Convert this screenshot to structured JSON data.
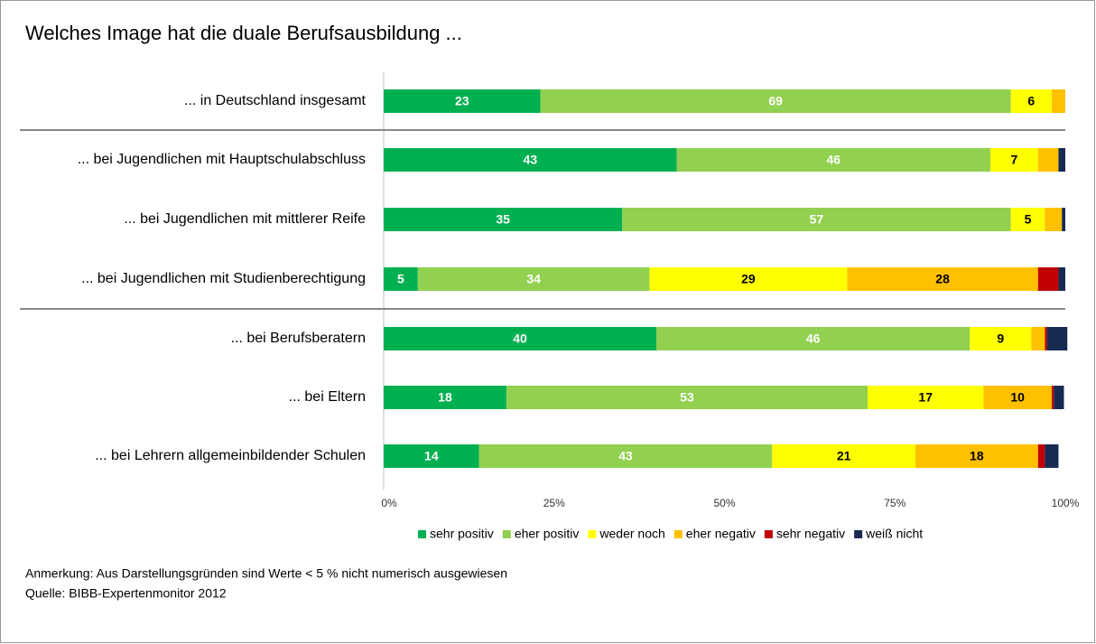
{
  "chart_data": {
    "type": "stacked-bar-horizontal",
    "title": "Welches Image hat die duale Berufsausbildung ...",
    "categories": [
      "... in Deutschland insgesamt",
      "... bei Jugendlichen mit Hauptschulabschluss",
      "... bei Jugendlichen mit mittlerer Reife",
      "... bei Jugendlichen mit Studienberechtigung",
      "... bei Berufsberatern",
      "... bei Eltern",
      "... bei Lehrern allgemeinbildender Schulen"
    ],
    "series": [
      {
        "name": "sehr positiv",
        "color": "#00b050",
        "values": [
          23,
          43,
          35,
          5,
          40,
          18,
          14
        ]
      },
      {
        "name": "eher positiv",
        "color": "#92d050",
        "values": [
          69,
          46,
          57,
          34,
          46,
          53,
          43
        ]
      },
      {
        "name": "weder noch",
        "color": "#ffff00",
        "values": [
          6,
          7,
          5,
          29,
          9,
          17,
          21
        ]
      },
      {
        "name": "eher negativ",
        "color": "#ffc000",
        "values": [
          2,
          3,
          2.5,
          28,
          2,
          10,
          18
        ],
        "value_labels": [
          null,
          null,
          null,
          "28",
          null,
          "10",
          "18"
        ]
      },
      {
        "name": "sehr negativ",
        "color": "#c00000",
        "values": [
          0,
          0,
          0,
          3,
          0.3,
          0.3,
          1
        ],
        "value_labels": [
          null,
          null,
          null,
          null,
          null,
          null,
          null
        ]
      },
      {
        "name": "weiß nicht",
        "color": "#172a52",
        "values": [
          0,
          1,
          0.5,
          1,
          3,
          1.5,
          2
        ],
        "value_labels": [
          null,
          null,
          null,
          null,
          null,
          null,
          null
        ]
      }
    ],
    "xlim": [
      0,
      100
    ],
    "xticks": [
      {
        "value": 0,
        "label": "0%"
      },
      {
        "value": 25,
        "label": "25%"
      },
      {
        "value": 50,
        "label": "50%"
      },
      {
        "value": 75,
        "label": "75%"
      },
      {
        "value": 100,
        "label": "100%"
      }
    ],
    "legend": "bottom",
    "notes": [
      "Anmerkung: Aus Darstellungsgründen sind Werte < 5 % nicht numerisch ausgewiesen",
      "Quelle: BIBB-Expertenmonitor 2012"
    ]
  }
}
